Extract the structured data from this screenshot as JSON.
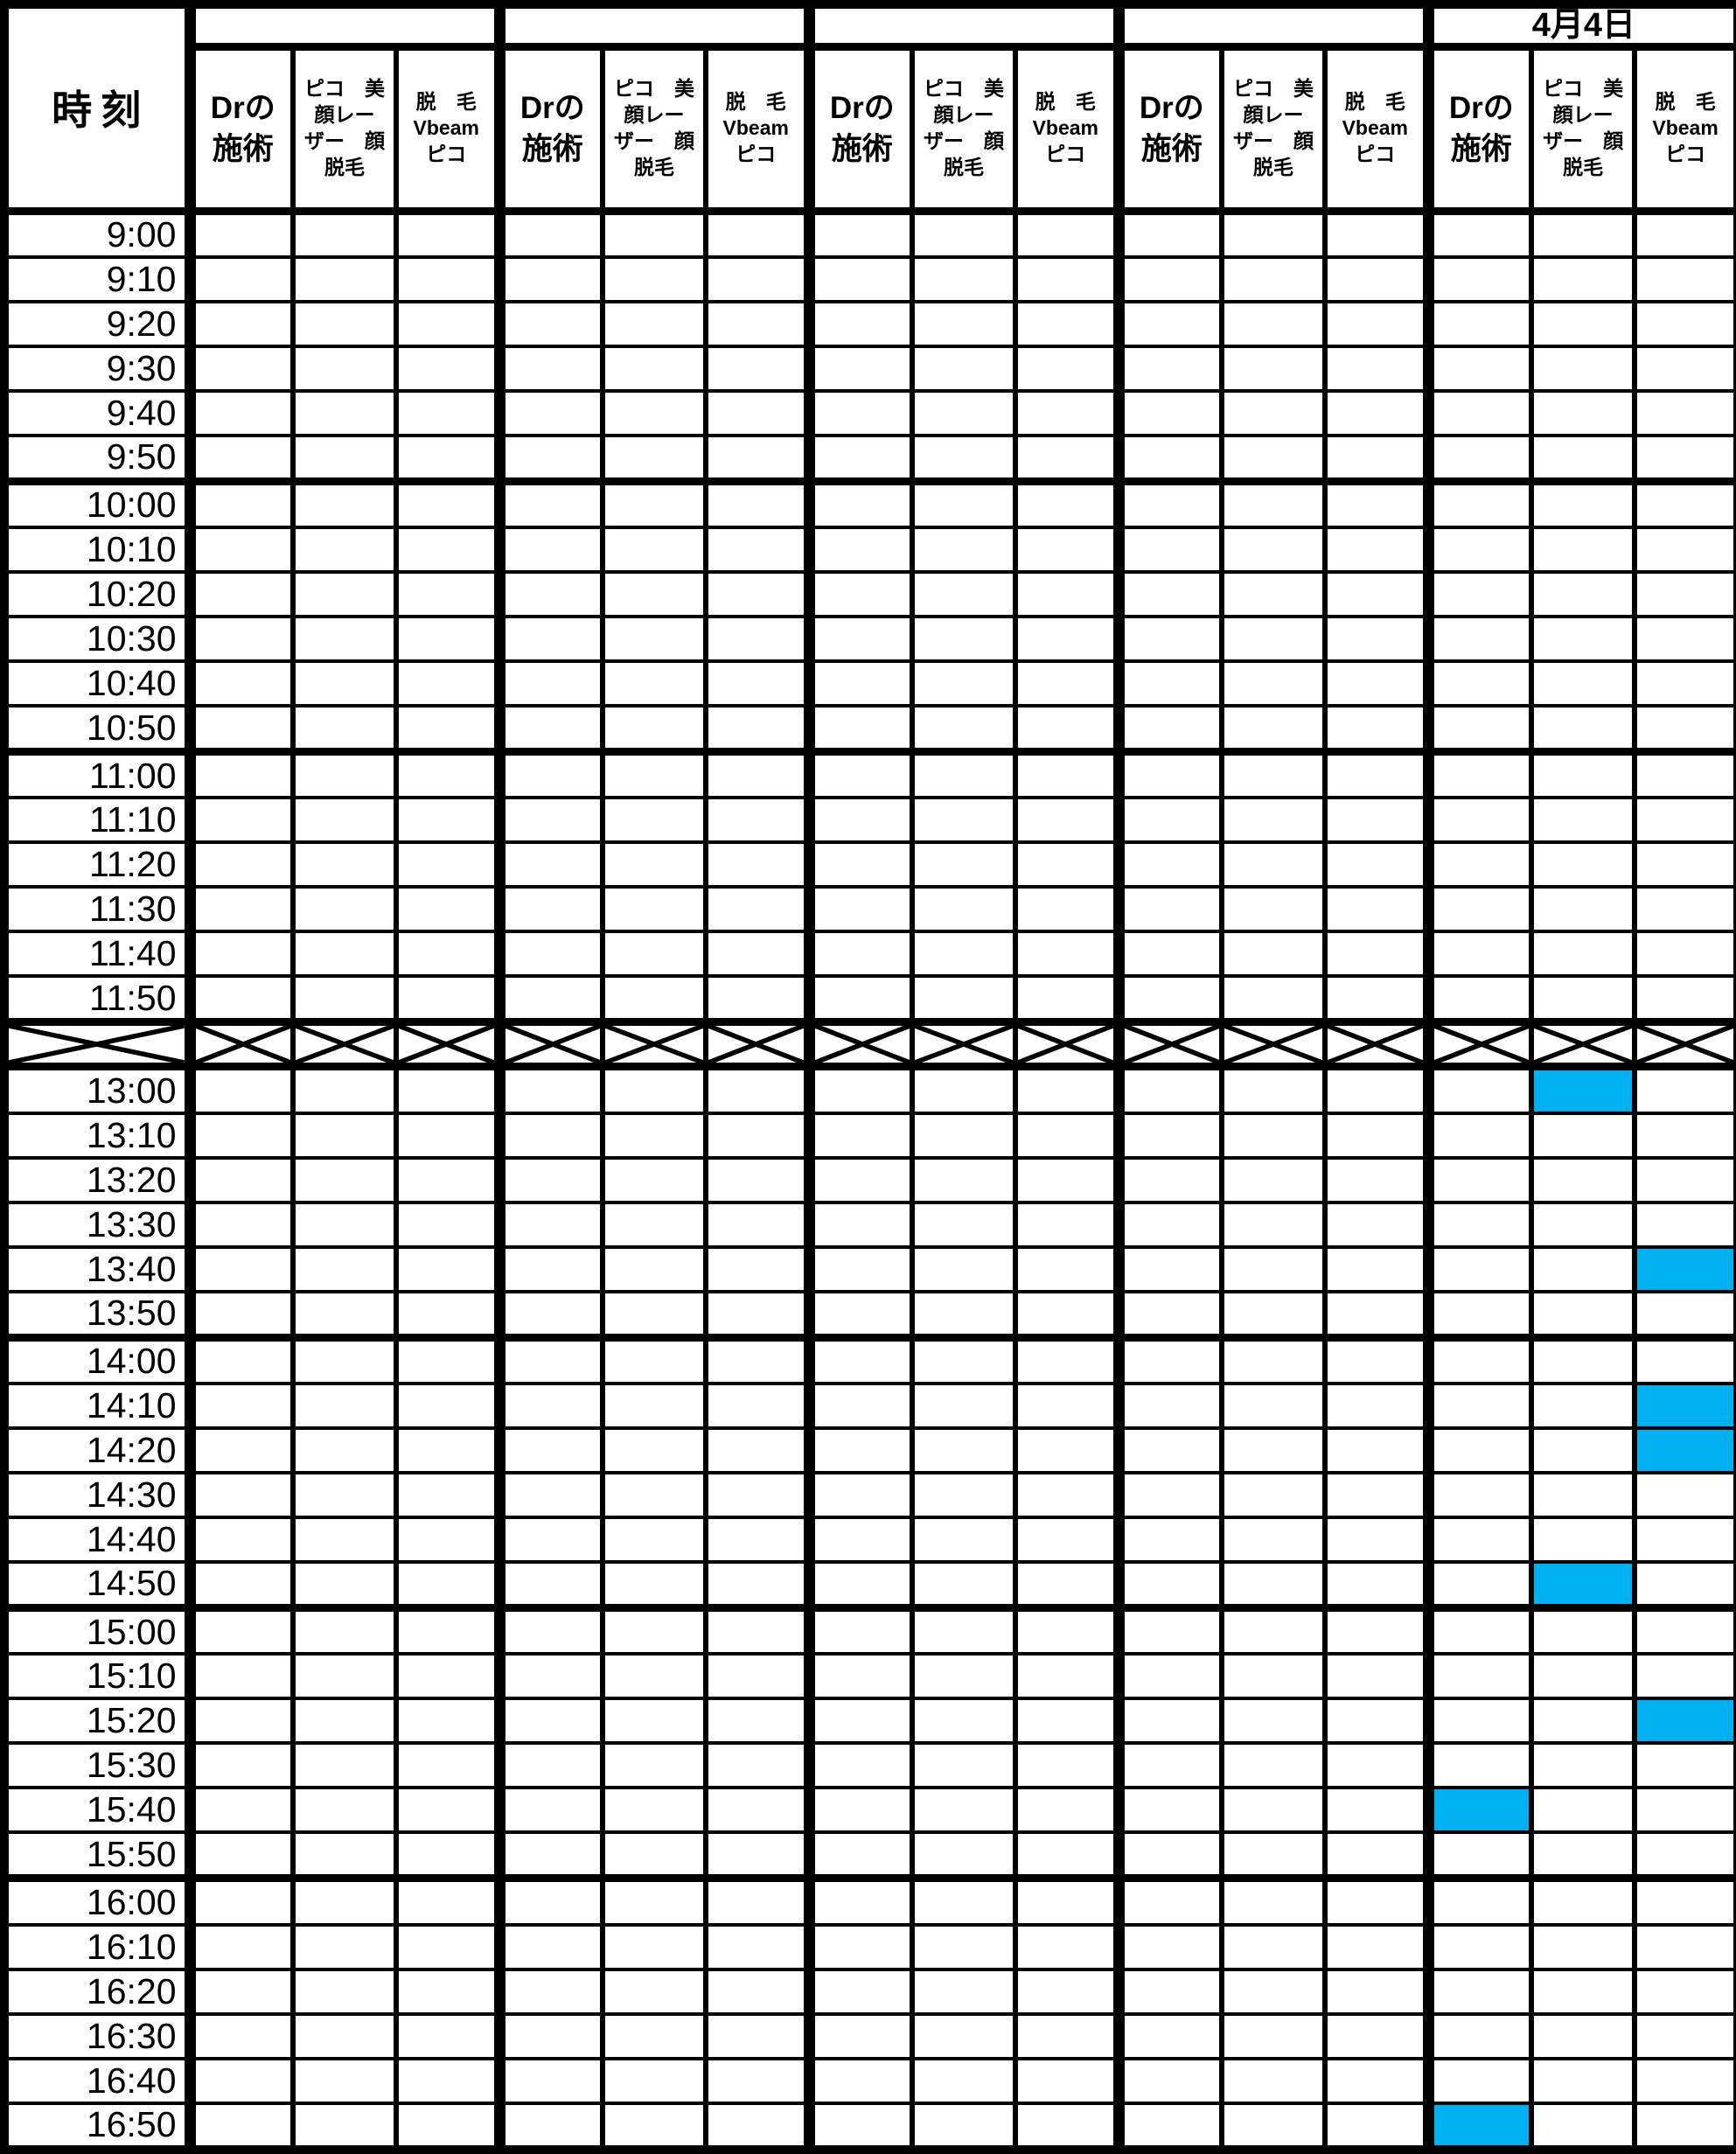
{
  "header": {
    "time_label": "時刻",
    "column_labels": [
      "Drの\n施術",
      "ピコ　美\n顔レー\nザー　顔\n脱毛",
      "脱　毛\nVbeam\nピコ"
    ],
    "group_top_labels": [
      "",
      "",
      "",
      "",
      "4月4日"
    ]
  },
  "rows": {
    "morning": [
      "9:00",
      "9:10",
      "9:20",
      "9:30",
      "9:40",
      "9:50",
      "10:00",
      "10:10",
      "10:20",
      "10:30",
      "10:40",
      "10:50",
      "11:00",
      "11:10",
      "11:20",
      "11:30",
      "11:40",
      "11:50"
    ],
    "lunch_break": {
      "crossed_out": true
    },
    "afternoon": [
      "13:00",
      "13:10",
      "13:20",
      "13:30",
      "13:40",
      "13:50",
      "14:00",
      "14:10",
      "14:20",
      "14:30",
      "14:40",
      "14:50",
      "15:00",
      "15:10",
      "15:20",
      "15:30",
      "15:40",
      "15:50",
      "16:00",
      "16:10",
      "16:20",
      "16:30",
      "16:40",
      "16:50"
    ]
  },
  "highlights": [
    {
      "time": "13:00",
      "group": 5,
      "column": 2
    },
    {
      "time": "13:40",
      "group": 5,
      "column": 3
    },
    {
      "time": "14:10",
      "group": 5,
      "column": 3
    },
    {
      "time": "14:20",
      "group": 5,
      "column": 3
    },
    {
      "time": "14:50",
      "group": 5,
      "column": 2
    },
    {
      "time": "15:20",
      "group": 5,
      "column": 3
    },
    {
      "time": "15:40",
      "group": 5,
      "column": 1
    },
    {
      "time": "16:50",
      "group": 5,
      "column": 1
    }
  ],
  "colors": {
    "highlight": "#00B0F0",
    "grid": "#000000",
    "background": "#FFFFFF"
  }
}
